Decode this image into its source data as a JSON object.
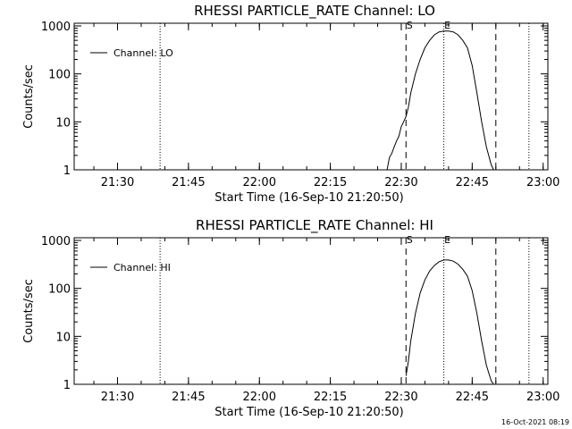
{
  "chart_data": [
    {
      "type": "line",
      "title": "RHESSI PARTICLE_RATE Channel: LO",
      "xlabel": "Start Time (16-Sep-10 21:20:50)",
      "ylabel": "Counts/sec",
      "y_scale": "log",
      "ylim": [
        1,
        1000
      ],
      "xlim": [
        "21:20:50",
        "23:01:00"
      ],
      "x_ticks": [
        "21:30",
        "21:45",
        "22:00",
        "22:15",
        "22:30",
        "22:45",
        "23:00"
      ],
      "y_ticks": [
        "1",
        "10",
        "100",
        "1000"
      ],
      "legend": {
        "entries": [
          "Channel: LO"
        ],
        "placement": "top-left"
      },
      "markers": [
        {
          "label": "S",
          "time": "22:31",
          "style": "dashed"
        },
        {
          "label": "E",
          "time": "22:39",
          "style": "dotted"
        }
      ],
      "extra_lines": [
        {
          "time": "21:39",
          "style": "dotted"
        },
        {
          "time": "22:50",
          "style": "dashed"
        },
        {
          "time": "22:57",
          "style": "dotted"
        }
      ],
      "series": [
        {
          "x": [
            "22:27:00",
            "22:27:30",
            "22:28:00",
            "22:28:30",
            "22:29:00",
            "22:29:30",
            "22:30:00",
            "22:30:30",
            "22:31:00",
            "22:31:30",
            "22:32:00",
            "22:33:00",
            "22:34:00",
            "22:35:00",
            "22:36:00",
            "22:37:00",
            "22:38:00",
            "22:39:00",
            "22:40:00",
            "22:41:00",
            "22:42:00",
            "22:43:00",
            "22:44:00",
            "22:45:00",
            "22:46:00",
            "22:47:00",
            "22:48:00",
            "22:49:00",
            "22:49:30"
          ],
          "y": [
            1.0,
            1.8,
            2.2,
            3.0,
            4.0,
            5.0,
            8.0,
            10,
            13,
            20,
            40,
            100,
            200,
            350,
            500,
            650,
            750,
            780,
            780,
            750,
            650,
            500,
            350,
            150,
            40,
            10,
            3,
            1.3,
            1.0
          ]
        }
      ]
    },
    {
      "type": "line",
      "title": "RHESSI PARTICLE_RATE Channel: HI",
      "xlabel": "Start Time (16-Sep-10 21:20:50)",
      "ylabel": "Counts/sec",
      "y_scale": "log",
      "ylim": [
        1,
        1000
      ],
      "xlim": [
        "21:20:50",
        "23:01:00"
      ],
      "x_ticks": [
        "21:30",
        "21:45",
        "22:00",
        "22:15",
        "22:30",
        "22:45",
        "23:00"
      ],
      "y_ticks": [
        "1",
        "10",
        "100",
        "1000"
      ],
      "legend": {
        "entries": [
          "Channel: HI"
        ],
        "placement": "top-left"
      },
      "markers": [
        {
          "label": "S",
          "time": "22:31",
          "style": "dashed"
        },
        {
          "label": "E",
          "time": "22:39",
          "style": "dotted"
        }
      ],
      "extra_lines": [
        {
          "time": "21:39",
          "style": "dotted"
        },
        {
          "time": "22:50",
          "style": "dashed"
        },
        {
          "time": "22:57",
          "style": "dotted"
        }
      ],
      "series": [
        {
          "x": [
            "22:31:00",
            "22:31:30",
            "22:32:00",
            "22:33:00",
            "22:34:00",
            "22:35:00",
            "22:36:00",
            "22:37:00",
            "22:38:00",
            "22:39:00",
            "22:40:00",
            "22:41:00",
            "22:42:00",
            "22:43:00",
            "22:44:00",
            "22:45:00",
            "22:46:00",
            "22:47:00",
            "22:48:00",
            "22:49:00",
            "22:49:30"
          ],
          "y": [
            1.5,
            3,
            8,
            30,
            80,
            150,
            230,
            300,
            360,
            390,
            390,
            370,
            320,
            250,
            180,
            90,
            30,
            8,
            2.5,
            1.2,
            1.0
          ]
        }
      ]
    }
  ],
  "timestamp": "16-Oct-2021 08:19"
}
